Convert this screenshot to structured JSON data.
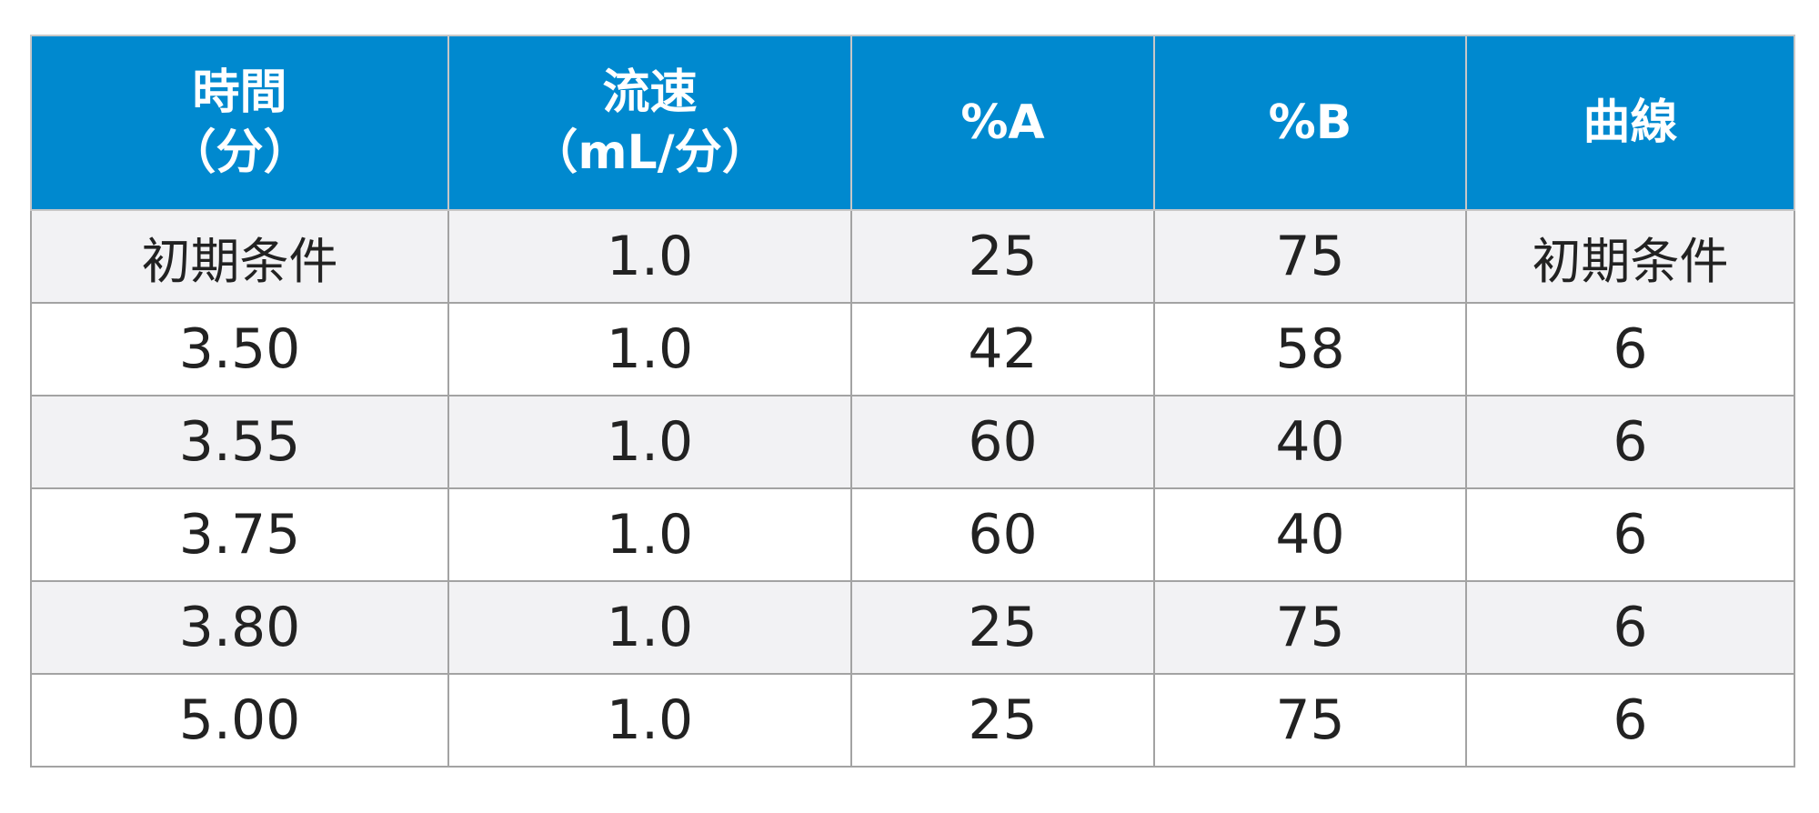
{
  "table": {
    "headers": [
      {
        "lines": [
          "時間",
          "（分）"
        ]
      },
      {
        "lines": [
          "流速",
          "（mL/分）"
        ]
      },
      {
        "lines": [
          "%A"
        ]
      },
      {
        "lines": [
          "%B"
        ]
      },
      {
        "lines": [
          "曲線"
        ]
      }
    ],
    "rows": [
      [
        "初期条件",
        "1.0",
        "25",
        "75",
        "初期条件"
      ],
      [
        "3.50",
        "1.0",
        "42",
        "58",
        "6"
      ],
      [
        "3.55",
        "1.0",
        "60",
        "40",
        "6"
      ],
      [
        "3.75",
        "1.0",
        "60",
        "40",
        "6"
      ],
      [
        "3.80",
        "1.0",
        "25",
        "75",
        "6"
      ],
      [
        "5.00",
        "1.0",
        "25",
        "75",
        "6"
      ]
    ]
  },
  "colors": {
    "header_bg": "#0089cf",
    "header_text": "#ffffff",
    "row_shade": "#f2f2f4",
    "border": "#a3a3a3"
  }
}
